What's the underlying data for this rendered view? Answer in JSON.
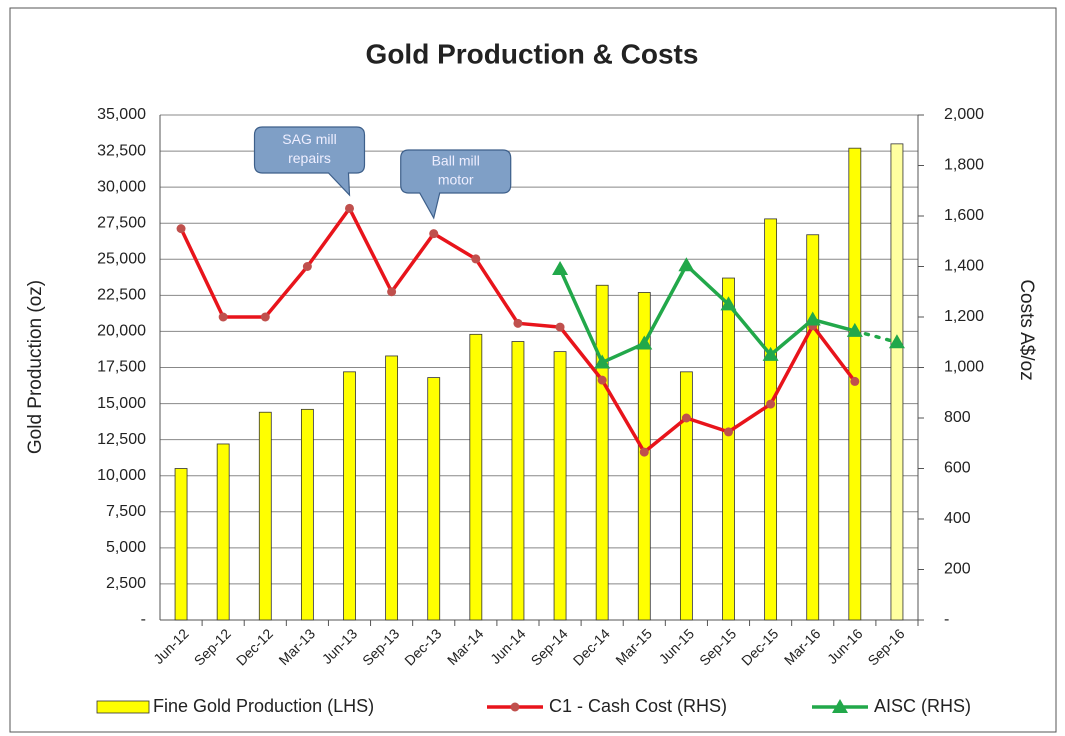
{
  "chart_data": {
    "type": "bar_line",
    "title": "Gold Production & Costs",
    "y_label": "Gold Production (oz)",
    "y2_label": "Costs A$/oz",
    "categories": [
      "Jun-12",
      "Sep-12",
      "Dec-12",
      "Mar-13",
      "Jun-13",
      "Sep-13",
      "Dec-13",
      "Mar-14",
      "Jun-14",
      "Sep-14",
      "Dec-14",
      "Mar-15",
      "Jun-15",
      "Sep-15",
      "Dec-15",
      "Mar-16",
      "Jun-16",
      "Sep-16"
    ],
    "series": [
      {
        "name": "Fine Gold Production (LHS)",
        "kind": "bar",
        "color": "#ffff00",
        "bar_colors": [
          "#ffff00",
          "#ffff00",
          "#ffff00",
          "#ffff00",
          "#ffff00",
          "#ffff00",
          "#ffff00",
          "#ffff00",
          "#ffff00",
          "#ffff00",
          "#ffff00",
          "#ffff00",
          "#ffff00",
          "#ffff00",
          "#ffff00",
          "#ffff00",
          "#ffff00",
          "#ffffa0"
        ],
        "values": [
          10500,
          12200,
          14400,
          14600,
          17200,
          18300,
          16800,
          19800,
          19300,
          18600,
          23200,
          22700,
          17200,
          23700,
          27800,
          26700,
          32700,
          33000
        ]
      },
      {
        "name": "C1 - Cash Cost (RHS)",
        "kind": "line",
        "marker": "circle",
        "color": "#e8141b",
        "axis": "y2",
        "values": [
          1550,
          1200,
          1200,
          1400,
          1630,
          1300,
          1530,
          1430,
          1175,
          1160,
          950,
          665,
          800,
          745,
          855,
          1165,
          945,
          null
        ]
      },
      {
        "name": "AISC (RHS)",
        "kind": "line",
        "marker": "triangle",
        "color": "#22a84a",
        "axis": "y2",
        "dotted_last_segment": true,
        "values": [
          null,
          null,
          null,
          null,
          null,
          null,
          null,
          null,
          null,
          1390,
          1020,
          1095,
          1405,
          1250,
          1050,
          1190,
          1145,
          1100
        ]
      }
    ],
    "ylim": [
      0,
      35000
    ],
    "yticks": [
      {
        "value": 0,
        "label": "-"
      },
      {
        "value": 2500,
        "label": "2,500"
      },
      {
        "value": 5000,
        "label": "5,000"
      },
      {
        "value": 7500,
        "label": "7,500"
      },
      {
        "value": 10000,
        "label": "10,000"
      },
      {
        "value": 12500,
        "label": "12,500"
      },
      {
        "value": 15000,
        "label": "15,000"
      },
      {
        "value": 17500,
        "label": "17,500"
      },
      {
        "value": 20000,
        "label": "20,000"
      },
      {
        "value": 22500,
        "label": "22,500"
      },
      {
        "value": 25000,
        "label": "25,000"
      },
      {
        "value": 27500,
        "label": "27,500"
      },
      {
        "value": 30000,
        "label": "30,000"
      },
      {
        "value": 32500,
        "label": "32,500"
      },
      {
        "value": 35000,
        "label": "35,000"
      }
    ],
    "y2lim": [
      0,
      2000
    ],
    "y2ticks": [
      {
        "value": 0,
        "label": "-"
      },
      200,
      400,
      600,
      800,
      {
        "value": 1000,
        "label": "1,000"
      },
      {
        "value": 1200,
        "label": "1,200"
      },
      {
        "value": 1400,
        "label": "1,400"
      },
      {
        "value": 1600,
        "label": "1,600"
      },
      {
        "value": 1800,
        "label": "1,800"
      },
      {
        "value": 2000,
        "label": "2,000"
      }
    ],
    "grid": true,
    "legend": "bottom",
    "annotations": [
      {
        "category": "Jun-13",
        "text": [
          "SAG mill",
          "repairs"
        ]
      },
      {
        "category": "Dec-13",
        "text": [
          "Ball mill",
          "motor"
        ]
      }
    ]
  }
}
